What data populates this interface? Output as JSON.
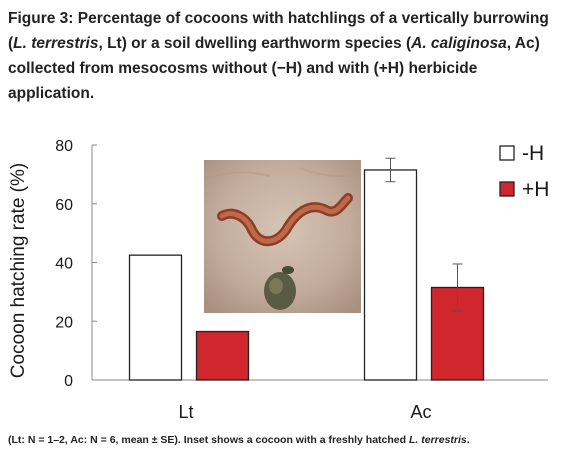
{
  "caption": {
    "part1": "Figure 3: Percentage of cocoons with hatchlings of a vertically burrowing (",
    "species1": "L. terrestris",
    "part2": ", Lt) or a soil dwelling earthworm species (",
    "species2": "A. caliginosa",
    "part3": ", Ac) collected from mesocosms without (−H) and with (+H) herbicide application."
  },
  "footnote": {
    "part1": "(Lt: N = 1–2, Ac: N = 6, mean ± SE). Inset shows a cocoon with a freshly hatched ",
    "species": "L. terrestris",
    "part2": "."
  },
  "inset": {
    "description_icon": "earthworm-cocoon-photo"
  },
  "chart_data": {
    "type": "bar",
    "categories": [
      "Lt",
      "Ac"
    ],
    "series": [
      {
        "name": "-H",
        "values": [
          42.5,
          71.5
        ],
        "errors": [
          null,
          4
        ],
        "color": "#ffffff"
      },
      {
        "name": "+H",
        "values": [
          16.5,
          31.5
        ],
        "errors": [
          null,
          8
        ],
        "color": "#d0262e"
      }
    ],
    "ylabel": "Cocoon hatching rate (%)",
    "xlabel": "",
    "ylim": [
      0,
      80
    ],
    "yticks": [
      0,
      20,
      40,
      60,
      80
    ],
    "legend_position": "top-right",
    "grid": false
  }
}
